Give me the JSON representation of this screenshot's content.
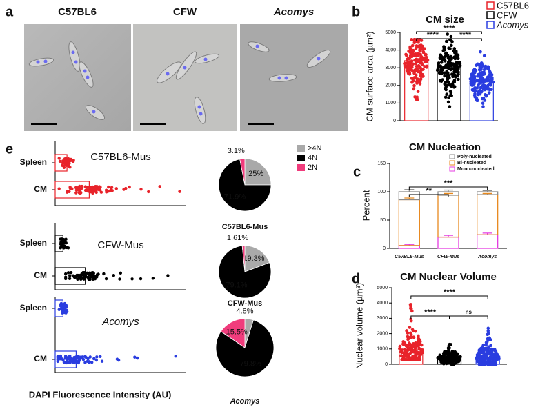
{
  "images": {
    "panel": "a",
    "labels": [
      "C57BL6",
      "CFW",
      "Acomys"
    ]
  },
  "chart_data": [
    {
      "type": "bar_scatter",
      "panel": "b",
      "title": "CM size",
      "ylabel": "CM surface area (µm²)",
      "categories": [
        "C57BL6",
        "CFW",
        "Acomys"
      ],
      "colors": [
        "#e8232a",
        "#000000",
        "#2a3de0"
      ],
      "values": [
        3400,
        3000,
        2200
      ],
      "ranges": [
        [
          1200,
          4600
        ],
        [
          800,
          4900
        ],
        [
          800,
          3900
        ]
      ],
      "ylim": [
        0,
        5000
      ],
      "yticks": [
        0,
        1000,
        2000,
        3000,
        4000,
        5000
      ],
      "comparisons": [
        "****",
        "****",
        "****"
      ],
      "legend": true
    },
    {
      "type": "stacked_bar",
      "panel": "c",
      "title": "CM Nucleation",
      "ylabel": "Percent",
      "categories": [
        "C57BL6-Mus",
        "CFW-Mus",
        "Acomys"
      ],
      "series": [
        {
          "name": "Mono-nucleated",
          "color": "#e43be0",
          "values": [
            5,
            20,
            24
          ],
          "errors": [
            2,
            3,
            3
          ]
        },
        {
          "name": "Bi-nucleated",
          "color": "#e8891e",
          "values": [
            81,
            74,
            71
          ],
          "errors": [
            3,
            3,
            2
          ]
        },
        {
          "name": "Poly-nucleated",
          "color": "#8a8a8a",
          "values": [
            14,
            6,
            5
          ],
          "errors": [
            4,
            3,
            2
          ]
        }
      ],
      "ylim": [
        0,
        150
      ],
      "yticks": [
        0,
        50,
        100,
        150
      ],
      "comparisons": [
        "**",
        "***"
      ]
    },
    {
      "type": "bar_scatter",
      "panel": "d",
      "title": "CM Nuclear Volume",
      "ylabel": "Nuclear volume (µm³)",
      "colors": [
        "#e8232a",
        "#000000",
        "#2a3de0"
      ],
      "values": [
        950,
        400,
        450
      ],
      "ranges": [
        [
          300,
          3900
        ],
        [
          0,
          1300
        ],
        [
          0,
          2350
        ]
      ],
      "ylim": [
        0,
        5000
      ],
      "yticks": [
        0,
        1000,
        2000,
        3000,
        4000,
        5000
      ],
      "comparisons": [
        "****",
        "ns",
        "****"
      ]
    },
    {
      "type": "strip",
      "panel": "e",
      "title": "C57BL6-Mus",
      "categories": [
        "Spleen",
        "CM"
      ],
      "color": "#e8232a",
      "values": [
        9,
        26
      ],
      "ranges": [
        [
          3,
          14
        ],
        [
          3,
          95
        ]
      ],
      "xlim": [
        0,
        100
      ]
    },
    {
      "type": "strip",
      "title": "CFW-Mus",
      "categories": [
        "Spleen",
        "CM"
      ],
      "color": "#000000",
      "values": [
        6,
        23
      ],
      "ranges": [
        [
          4,
          10
        ],
        [
          8,
          86
        ]
      ],
      "xlim": [
        0,
        100
      ]
    },
    {
      "type": "strip",
      "title": "Acomys",
      "categories": [
        "Spleen",
        "CM"
      ],
      "color": "#2a3de0",
      "values": [
        6,
        16
      ],
      "ranges": [
        [
          3,
          9
        ],
        [
          2,
          92
        ]
      ],
      "xlim": [
        0,
        100
      ],
      "xlabel": "DAPI Fluorescence Intensity (AU)"
    },
    {
      "type": "pie",
      "title": "C57BL6-Mus",
      "categories": [
        ">4N",
        "4N",
        "2N"
      ],
      "colors": [
        "#a9a9a9",
        "#000000",
        "#f03c7c"
      ],
      "values": [
        25,
        71.9,
        3.1
      ],
      "value_labels": [
        "25%",
        "71.9%",
        "3.1%"
      ],
      "legend": true
    },
    {
      "type": "pie",
      "title": "CFW-Mus",
      "categories": [
        ">4N",
        "4N",
        "2N"
      ],
      "colors": [
        "#a9a9a9",
        "#000000",
        "#f03c7c"
      ],
      "values": [
        19.3,
        79.1,
        1.61
      ],
      "value_labels": [
        "19.3%",
        "79.1%",
        "1.61%"
      ]
    },
    {
      "type": "pie",
      "title": "Acomys",
      "categories": [
        ">4N",
        "4N",
        "2N"
      ],
      "colors": [
        "#a9a9a9",
        "#000000",
        "#f03c7c"
      ],
      "values": [
        4.8,
        79.8,
        15.5
      ],
      "value_labels": [
        "4.8%",
        "79.8%",
        "15.5%"
      ]
    }
  ]
}
